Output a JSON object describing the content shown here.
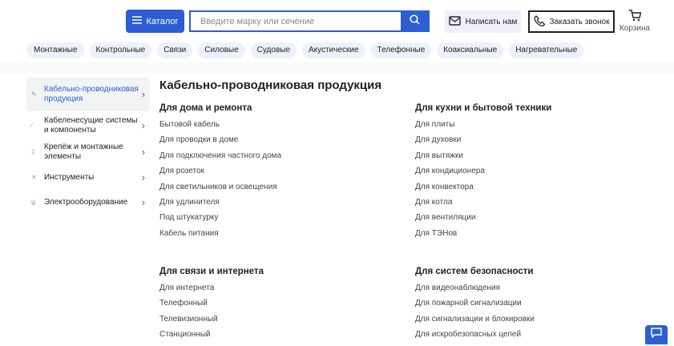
{
  "header": {
    "catalog": "Каталог",
    "search_placeholder": "Введите марку или сечение",
    "write": "Написать нам",
    "call": "Заказать звонок",
    "cart": "Корзина"
  },
  "chips": [
    "Монтажные",
    "Контрольные",
    "Связи",
    "Силовые",
    "Судовые",
    "Акустические",
    "Телефонные",
    "Коаксиальные",
    "Нагревательные"
  ],
  "sidebar": [
    {
      "label": "Кабельно-проводниковая продукция",
      "icon": "cable-icon",
      "active": true
    },
    {
      "label": "Кабеленесущие системы и компоненты",
      "icon": "tray-icon"
    },
    {
      "label": "Крепёж и монтажные элементы",
      "icon": "fastener-icon"
    },
    {
      "label": "Инструменты",
      "icon": "wrench-icon"
    },
    {
      "label": "Электрооборудование",
      "icon": "plug-icon"
    }
  ],
  "main": {
    "title": "Кабельно-проводниковая продукция",
    "groups": [
      {
        "title": "Для дома и ремонта",
        "items": [
          "Бытовой кабель",
          "Для проводки в доме",
          "Для подключения частного дома",
          "Для розеток",
          "Для светильников и освещения",
          "Для удлинителя",
          "Под штукатурку",
          "Кабель питания"
        ]
      },
      {
        "title": "Для кухни и бытовой техники",
        "items": [
          "Для плиты",
          "Для духовки",
          "Для вытяжки",
          "Для кондиционера",
          "Для конвектора",
          "Для котла",
          "Для вентиляции",
          "Для ТЭНов"
        ]
      },
      {
        "title": "Для связи и интернета",
        "items": [
          "Для интернета",
          "Телефонный",
          "Телевизионный",
          "Станционный"
        ]
      },
      {
        "title": "Для систем безопасности",
        "items": [
          "Для видеонаблюдения",
          "Для пожарной сигнализации",
          "Для сигнализации и блокировки",
          "Для искробезопасных цепей"
        ]
      }
    ]
  },
  "colors": {
    "accent": "#2d5fd3",
    "chip_bg": "#edf1fb"
  }
}
